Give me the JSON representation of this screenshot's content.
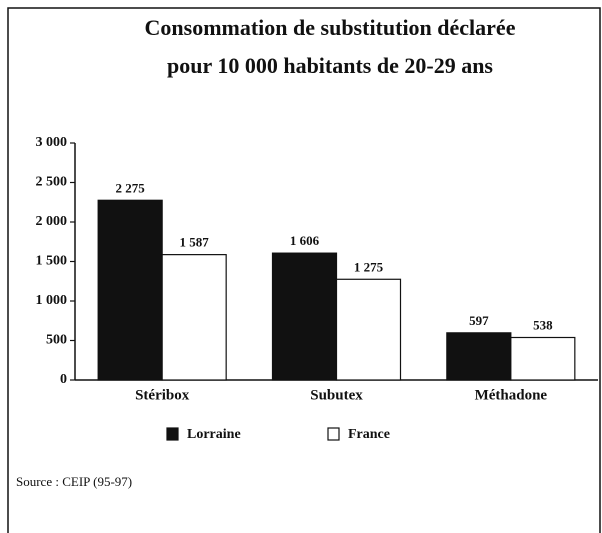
{
  "chart_data": {
    "type": "bar",
    "title": [
      "Consommation de substitution déclarée",
      "pour 10 000 habitants de 20-29 ans"
    ],
    "source": "Source : CEIP (95-97)",
    "categories": [
      "Stéribox",
      "Subutex",
      "Méthadone"
    ],
    "series": [
      {
        "name": "Lorraine",
        "color": "#111111",
        "values": [
          2275,
          1606,
          597
        ],
        "value_labels": [
          "2 275",
          "1 606",
          "597"
        ]
      },
      {
        "name": "France",
        "color": "#ffffff",
        "values": [
          1587,
          1275,
          538
        ],
        "value_labels": [
          "1 587",
          "1 275",
          "538"
        ]
      }
    ],
    "ylim": [
      0,
      3000
    ],
    "yticks": [
      0,
      500,
      {
        "value": 1000,
        "label": "1 000"
      },
      {
        "value": 1500,
        "label": "1 500"
      },
      {
        "value": 2000,
        "label": "2 000"
      },
      {
        "value": 2500,
        "label": "2 500"
      },
      {
        "value": 3000,
        "label": "3 000"
      }
    ],
    "grid": false
  }
}
